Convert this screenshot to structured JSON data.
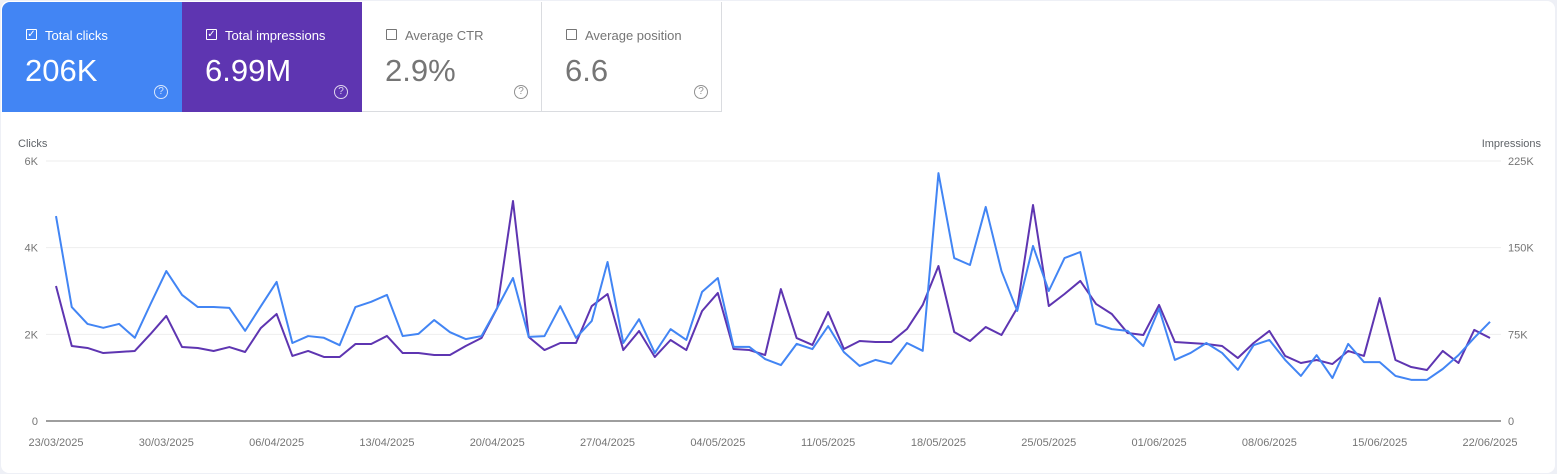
{
  "metrics": [
    {
      "label": "Total clicks",
      "value": "206K",
      "checked": true,
      "color": "#4285f4"
    },
    {
      "label": "Total impressions",
      "value": "6.99M",
      "checked": true,
      "color": "#5e35b1"
    },
    {
      "label": "Average CTR",
      "value": "2.9%",
      "checked": false
    },
    {
      "label": "Average position",
      "value": "6.6",
      "checked": false
    }
  ],
  "icons": {
    "checkbox": "checkbox-icon",
    "help": "help-circle-icon"
  },
  "chart_data": {
    "type": "line",
    "grid": true,
    "left_axis": {
      "label": "Clicks",
      "range": [
        0,
        6000
      ],
      "ticks": [
        "0",
        "2K",
        "4K",
        "6K"
      ],
      "tick_values": [
        0,
        2000,
        4000,
        6000
      ]
    },
    "right_axis": {
      "label": "Impressions",
      "range": [
        0,
        225000
      ],
      "ticks": [
        "0",
        "75K",
        "150K",
        "225K"
      ],
      "tick_values": [
        0,
        75000,
        150000,
        225000
      ]
    },
    "x_ticks": [
      "23/03/2025",
      "30/03/2025",
      "06/04/2025",
      "13/04/2025",
      "20/04/2025",
      "27/04/2025",
      "04/05/2025",
      "11/05/2025",
      "18/05/2025",
      "25/05/2025",
      "01/06/2025",
      "08/06/2025",
      "15/06/2025",
      "22/06/2025"
    ],
    "x": [
      "23/03/2025",
      "24/03/2025",
      "25/03/2025",
      "26/03/2025",
      "27/03/2025",
      "28/03/2025",
      "29/03/2025",
      "30/03/2025",
      "31/03/2025",
      "01/04/2025",
      "02/04/2025",
      "03/04/2025",
      "04/04/2025",
      "05/04/2025",
      "06/04/2025",
      "07/04/2025",
      "08/04/2025",
      "09/04/2025",
      "10/04/2025",
      "11/04/2025",
      "12/04/2025",
      "13/04/2025",
      "14/04/2025",
      "15/04/2025",
      "16/04/2025",
      "17/04/2025",
      "18/04/2025",
      "19/04/2025",
      "20/04/2025",
      "21/04/2025",
      "22/04/2025",
      "23/04/2025",
      "24/04/2025",
      "25/04/2025",
      "26/04/2025",
      "27/04/2025",
      "28/04/2025",
      "29/04/2025",
      "30/04/2025",
      "01/05/2025",
      "02/05/2025",
      "03/05/2025",
      "04/05/2025",
      "05/05/2025",
      "06/05/2025",
      "07/05/2025",
      "08/05/2025",
      "09/05/2025",
      "10/05/2025",
      "11/05/2025",
      "12/05/2025",
      "13/05/2025",
      "14/05/2025",
      "15/05/2025",
      "16/05/2025",
      "17/05/2025",
      "18/05/2025",
      "19/05/2025",
      "20/05/2025",
      "21/05/2025",
      "22/05/2025",
      "23/05/2025",
      "24/05/2025",
      "25/05/2025",
      "26/05/2025",
      "27/05/2025",
      "28/05/2025",
      "29/05/2025",
      "30/05/2025",
      "31/05/2025",
      "01/06/2025",
      "02/06/2025",
      "03/06/2025",
      "04/06/2025",
      "05/06/2025",
      "06/06/2025",
      "07/06/2025",
      "08/06/2025",
      "09/06/2025",
      "10/06/2025",
      "11/06/2025",
      "12/06/2025",
      "13/06/2025",
      "14/06/2025",
      "15/06/2025",
      "16/06/2025",
      "17/06/2025",
      "18/06/2025",
      "19/06/2025",
      "20/06/2025",
      "21/06/2025",
      "22/06/2025"
    ],
    "series": [
      {
        "name": "Clicks",
        "axis": "left",
        "color": "#4285f4",
        "values": [
          4730,
          2630,
          2240,
          2150,
          2240,
          1920,
          2700,
          3460,
          2910,
          2630,
          2630,
          2610,
          2080,
          2650,
          3210,
          1800,
          1960,
          1920,
          1750,
          2630,
          2750,
          2910,
          1960,
          2010,
          2330,
          2050,
          1890,
          1960,
          2610,
          3300,
          1940,
          1960,
          2650,
          1920,
          2310,
          3670,
          1800,
          2350,
          1570,
          2120,
          1870,
          2980,
          3300,
          1710,
          1710,
          1430,
          1290,
          1780,
          1660,
          2190,
          1590,
          1270,
          1410,
          1320,
          1800,
          1620,
          5720,
          3760,
          3600,
          4940,
          3460,
          2540,
          4040,
          3000,
          3760,
          3900,
          2240,
          2120,
          2080,
          1730,
          2590,
          1410,
          1570,
          1800,
          1570,
          1180,
          1750,
          1870,
          1410,
          1040,
          1520,
          990,
          1780,
          1360,
          1360,
          1040,
          950,
          950,
          1200,
          1520,
          1920,
          2290
        ]
      },
      {
        "name": "Impressions",
        "axis": "right",
        "color": "#5e35b1",
        "values": [
          116800,
          64900,
          63200,
          58800,
          59700,
          60600,
          75300,
          90900,
          64000,
          63200,
          60600,
          64000,
          59700,
          80500,
          92600,
          56300,
          60600,
          55400,
          55400,
          66600,
          66600,
          73600,
          58800,
          58800,
          57100,
          57100,
          64900,
          71800,
          97800,
          190400,
          72700,
          61400,
          67500,
          67500,
          99500,
          109900,
          61400,
          77900,
          55400,
          70100,
          61400,
          95200,
          110800,
          62300,
          61400,
          57100,
          114200,
          71800,
          65800,
          94300,
          62300,
          69200,
          68400,
          68400,
          79600,
          100400,
          134100,
          77000,
          69200,
          81300,
          74400,
          97800,
          186900,
          99500,
          109900,
          121200,
          101300,
          92600,
          76200,
          74400,
          100400,
          68400,
          67500,
          66600,
          64900,
          54500,
          67500,
          77900,
          56300,
          50200,
          52800,
          49300,
          60600,
          56300,
          106400,
          52800,
          46700,
          44100,
          60600,
          50200,
          78800,
          71800
        ]
      }
    ]
  }
}
